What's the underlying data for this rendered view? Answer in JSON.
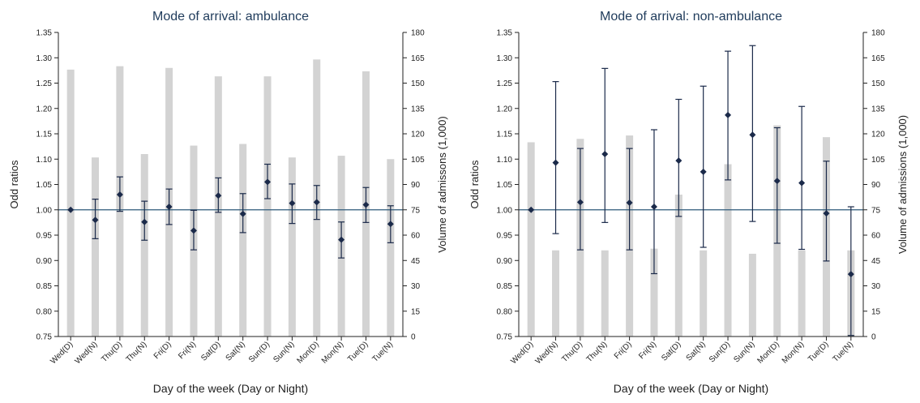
{
  "chart_data": [
    {
      "type": "bar+errorbar",
      "title": "Mode of arrival: ambulance",
      "xlabel": "Day of the week (Day or Night)",
      "ylabel_left": "Odd ratios",
      "ylabel_right": "Volume of admissons (1,000)",
      "categories": [
        "Wed(D)",
        "Wed(N)",
        "Thu(D)",
        "Thu(N)",
        "Fri(D)",
        "Fri(N)",
        "Sat(D)",
        "Sat(N)",
        "Sun(D)",
        "Sun(N)",
        "Mon(D)",
        "Mon(N)",
        "Tue(D)",
        "Tue(N)"
      ],
      "ylim_left": [
        0.75,
        1.35
      ],
      "ylim_right": [
        0,
        180
      ],
      "yticks_left": [
        "0.75",
        "0.80",
        "0.85",
        "0.90",
        "0.95",
        "1.00",
        "1.05",
        "1.10",
        "1.15",
        "1.20",
        "1.25",
        "1.30",
        "1.35"
      ],
      "yticks_right": [
        "0",
        "15",
        "30",
        "45",
        "60",
        "75",
        "90",
        "105",
        "120",
        "135",
        "150",
        "165",
        "180"
      ],
      "reference_line": 1.0,
      "bars_volume": [
        158,
        106,
        160,
        108,
        159,
        113,
        154,
        114,
        154,
        106,
        164,
        107,
        157,
        105
      ],
      "odds_ratio": {
        "estimate": [
          1.0,
          0.98,
          1.03,
          0.976,
          1.006,
          0.959,
          1.028,
          0.992,
          1.055,
          1.013,
          1.015,
          0.941,
          1.01,
          0.972
        ],
        "lower": [
          null,
          0.943,
          0.997,
          0.94,
          0.971,
          0.921,
          0.995,
          0.955,
          1.022,
          0.973,
          0.981,
          0.905,
          0.975,
          0.935
        ],
        "upper": [
          null,
          1.021,
          1.065,
          1.017,
          1.041,
          0.999,
          1.063,
          1.032,
          1.09,
          1.051,
          1.048,
          0.976,
          1.044,
          1.008
        ]
      },
      "colors": {
        "bars": "#d3d3d3",
        "points": "#1b2a4a",
        "refline": "#2e5a7a"
      }
    },
    {
      "type": "bar+errorbar",
      "title": "Mode of arrival: non-ambulance",
      "xlabel": "Day of the week (Day or Night)",
      "ylabel_left": "Odd ratios",
      "ylabel_right": "Volume of admissions (1,000)",
      "categories": [
        "Wed(D)",
        "Wed(N)",
        "Thu(D)",
        "Thu(N)",
        "Fri(D)",
        "Fri(N)",
        "Sat(D)",
        "Sat(N)",
        "Sun(D)",
        "Sun(N)",
        "Mon(D)",
        "Mon(N)",
        "Tue(D)",
        "Tue(N)"
      ],
      "ylim_left": [
        0.75,
        1.35
      ],
      "ylim_right": [
        0,
        180
      ],
      "yticks_left": [
        "0.75",
        "0.80",
        "0.85",
        "0.90",
        "0.95",
        "1.00",
        "1.05",
        "1.10",
        "1.15",
        "1.20",
        "1.25",
        "1.30",
        "1.35"
      ],
      "yticks_right": [
        "0",
        "15",
        "30",
        "45",
        "60",
        "75",
        "90",
        "105",
        "120",
        "135",
        "150",
        "165",
        "180"
      ],
      "reference_line": 1.0,
      "bars_volume": [
        115,
        51,
        117,
        51,
        119,
        52,
        84,
        51,
        102,
        49,
        125,
        51,
        118,
        51
      ],
      "odds_ratio": {
        "estimate": [
          1.0,
          1.093,
          1.015,
          1.11,
          1.014,
          1.006,
          1.097,
          1.075,
          1.187,
          1.148,
          1.057,
          1.053,
          0.993,
          0.873
        ],
        "lower": [
          null,
          0.953,
          0.921,
          0.975,
          0.921,
          0.874,
          0.987,
          0.926,
          1.059,
          0.977,
          0.934,
          0.922,
          0.899,
          0.752
        ],
        "upper": [
          null,
          1.253,
          1.121,
          1.279,
          1.121,
          1.158,
          1.218,
          1.244,
          1.313,
          1.324,
          1.162,
          1.204,
          1.096,
          1.006
        ]
      },
      "colors": {
        "bars": "#d3d3d3",
        "points": "#1b2a4a",
        "refline": "#2e5a7a"
      }
    }
  ]
}
